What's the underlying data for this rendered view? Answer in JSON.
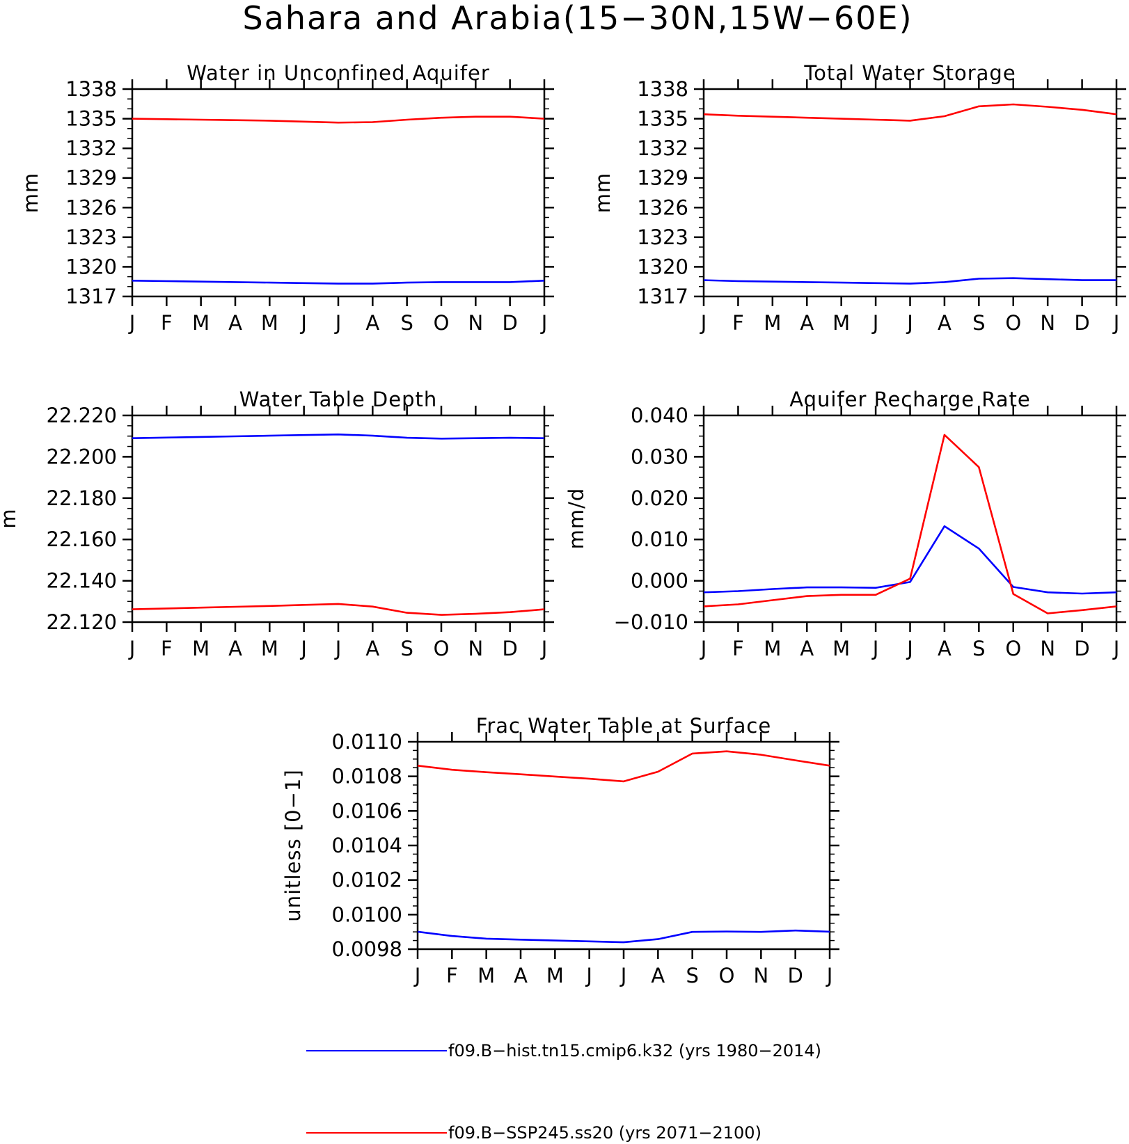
{
  "title": "Sahara and Arabia(15−30N,15W−60E)",
  "months": [
    "J",
    "F",
    "M",
    "A",
    "M",
    "J",
    "J",
    "A",
    "S",
    "O",
    "N",
    "D",
    "J"
  ],
  "colors": {
    "hist": "#0000ff",
    "ssp": "#ff0000"
  },
  "legend": [
    {
      "label": "f09.B−hist.tn15.cmip6.k32 (yrs 1980−2014)",
      "color": "#0000ff"
    },
    {
      "label": "f09.B−SSP245.ss20 (yrs 2071−2100)",
      "color": "#ff0000"
    }
  ],
  "chart_data": [
    {
      "type": "line",
      "title": "Water in Unconfined Aquifer",
      "ylabel": "mm",
      "ylim": [
        1317,
        1338
      ],
      "yticks": [
        "1317",
        "1320",
        "1323",
        "1326",
        "1329",
        "1332",
        "1335",
        "1338"
      ],
      "yticks_values": [
        1317,
        1320,
        1323,
        1326,
        1329,
        1332,
        1335,
        1338
      ],
      "minor_per_major": 3,
      "series": [
        {
          "key": "hist",
          "values": [
            1318.6,
            1318.55,
            1318.5,
            1318.45,
            1318.4,
            1318.35,
            1318.3,
            1318.3,
            1318.4,
            1318.45,
            1318.45,
            1318.45,
            1318.6
          ]
        },
        {
          "key": "ssp",
          "values": [
            1335.0,
            1334.95,
            1334.9,
            1334.85,
            1334.8,
            1334.7,
            1334.6,
            1334.65,
            1334.9,
            1335.1,
            1335.2,
            1335.2,
            1335.0
          ]
        }
      ]
    },
    {
      "type": "line",
      "title": "Total Water Storage",
      "ylabel": "mm",
      "ylim": [
        1317,
        1338
      ],
      "yticks": [
        "1317",
        "1320",
        "1323",
        "1326",
        "1329",
        "1332",
        "1335",
        "1338"
      ],
      "yticks_values": [
        1317,
        1320,
        1323,
        1326,
        1329,
        1332,
        1335,
        1338
      ],
      "minor_per_major": 3,
      "series": [
        {
          "key": "hist",
          "values": [
            1318.65,
            1318.55,
            1318.5,
            1318.45,
            1318.4,
            1318.35,
            1318.3,
            1318.45,
            1318.8,
            1318.85,
            1318.75,
            1318.65,
            1318.65
          ]
        },
        {
          "key": "ssp",
          "values": [
            1335.45,
            1335.3,
            1335.2,
            1335.1,
            1335.0,
            1334.9,
            1334.8,
            1335.25,
            1336.25,
            1336.45,
            1336.2,
            1335.9,
            1335.45
          ]
        }
      ]
    },
    {
      "type": "line",
      "title": "Water Table Depth",
      "ylabel": "m",
      "ylim": [
        22.12,
        22.22
      ],
      "yticks": [
        "22.120",
        "22.140",
        "22.160",
        "22.180",
        "22.200",
        "22.220"
      ],
      "yticks_values": [
        22.12,
        22.14,
        22.16,
        22.18,
        22.2,
        22.22
      ],
      "minor_per_major": 4,
      "series": [
        {
          "key": "hist",
          "values": [
            22.209,
            22.2093,
            22.2096,
            22.2099,
            22.2102,
            22.2105,
            22.2108,
            22.2102,
            22.2092,
            22.2088,
            22.209,
            22.2092,
            22.209
          ]
        },
        {
          "key": "ssp",
          "values": [
            22.1262,
            22.1266,
            22.127,
            22.1274,
            22.1278,
            22.1283,
            22.1288,
            22.1275,
            22.1245,
            22.1235,
            22.124,
            22.1248,
            22.1262
          ]
        }
      ]
    },
    {
      "type": "line",
      "title": "Aquifer Recharge Rate",
      "ylabel": "mm/d",
      "ylim": [
        -0.01,
        0.04
      ],
      "yticks": [
        "−0.010",
        "0.000",
        "0.010",
        "0.020",
        "0.030",
        "0.040"
      ],
      "yticks_values": [
        -0.01,
        0.0,
        0.01,
        0.02,
        0.03,
        0.04
      ],
      "minor_per_major": 4,
      "series": [
        {
          "key": "hist",
          "values": [
            -0.0028,
            -0.0025,
            -0.002,
            -0.0016,
            -0.0016,
            -0.0017,
            -0.0003,
            0.0132,
            0.0078,
            -0.0015,
            -0.0028,
            -0.0031,
            -0.0028
          ]
        },
        {
          "key": "ssp",
          "values": [
            -0.0062,
            -0.0057,
            -0.0047,
            -0.0037,
            -0.0034,
            -0.0034,
            0.0005,
            0.0353,
            0.0275,
            -0.0032,
            -0.0079,
            -0.0071,
            -0.0062
          ]
        }
      ]
    },
    {
      "type": "line",
      "title": "Frac Water Table at Surface",
      "ylabel": "unitless [0−1]",
      "ylim": [
        0.0098,
        0.011
      ],
      "yticks": [
        "0.0098",
        "0.0100",
        "0.0102",
        "0.0104",
        "0.0106",
        "0.0108",
        "0.0110"
      ],
      "yticks_values": [
        0.0098,
        0.01,
        0.0102,
        0.0104,
        0.0106,
        0.0108,
        0.011
      ],
      "minor_per_major": 4,
      "series": [
        {
          "key": "hist",
          "values": [
            0.009901,
            0.009876,
            0.009861,
            0.009855,
            0.00985,
            0.009845,
            0.00984,
            0.009858,
            0.0099,
            0.009902,
            0.0099,
            0.009908,
            0.009901
          ]
        },
        {
          "key": "ssp",
          "values": [
            0.010862,
            0.010838,
            0.010824,
            0.010812,
            0.010799,
            0.010786,
            0.010771,
            0.010827,
            0.010932,
            0.010945,
            0.010925,
            0.010893,
            0.010862
          ]
        }
      ]
    }
  ]
}
